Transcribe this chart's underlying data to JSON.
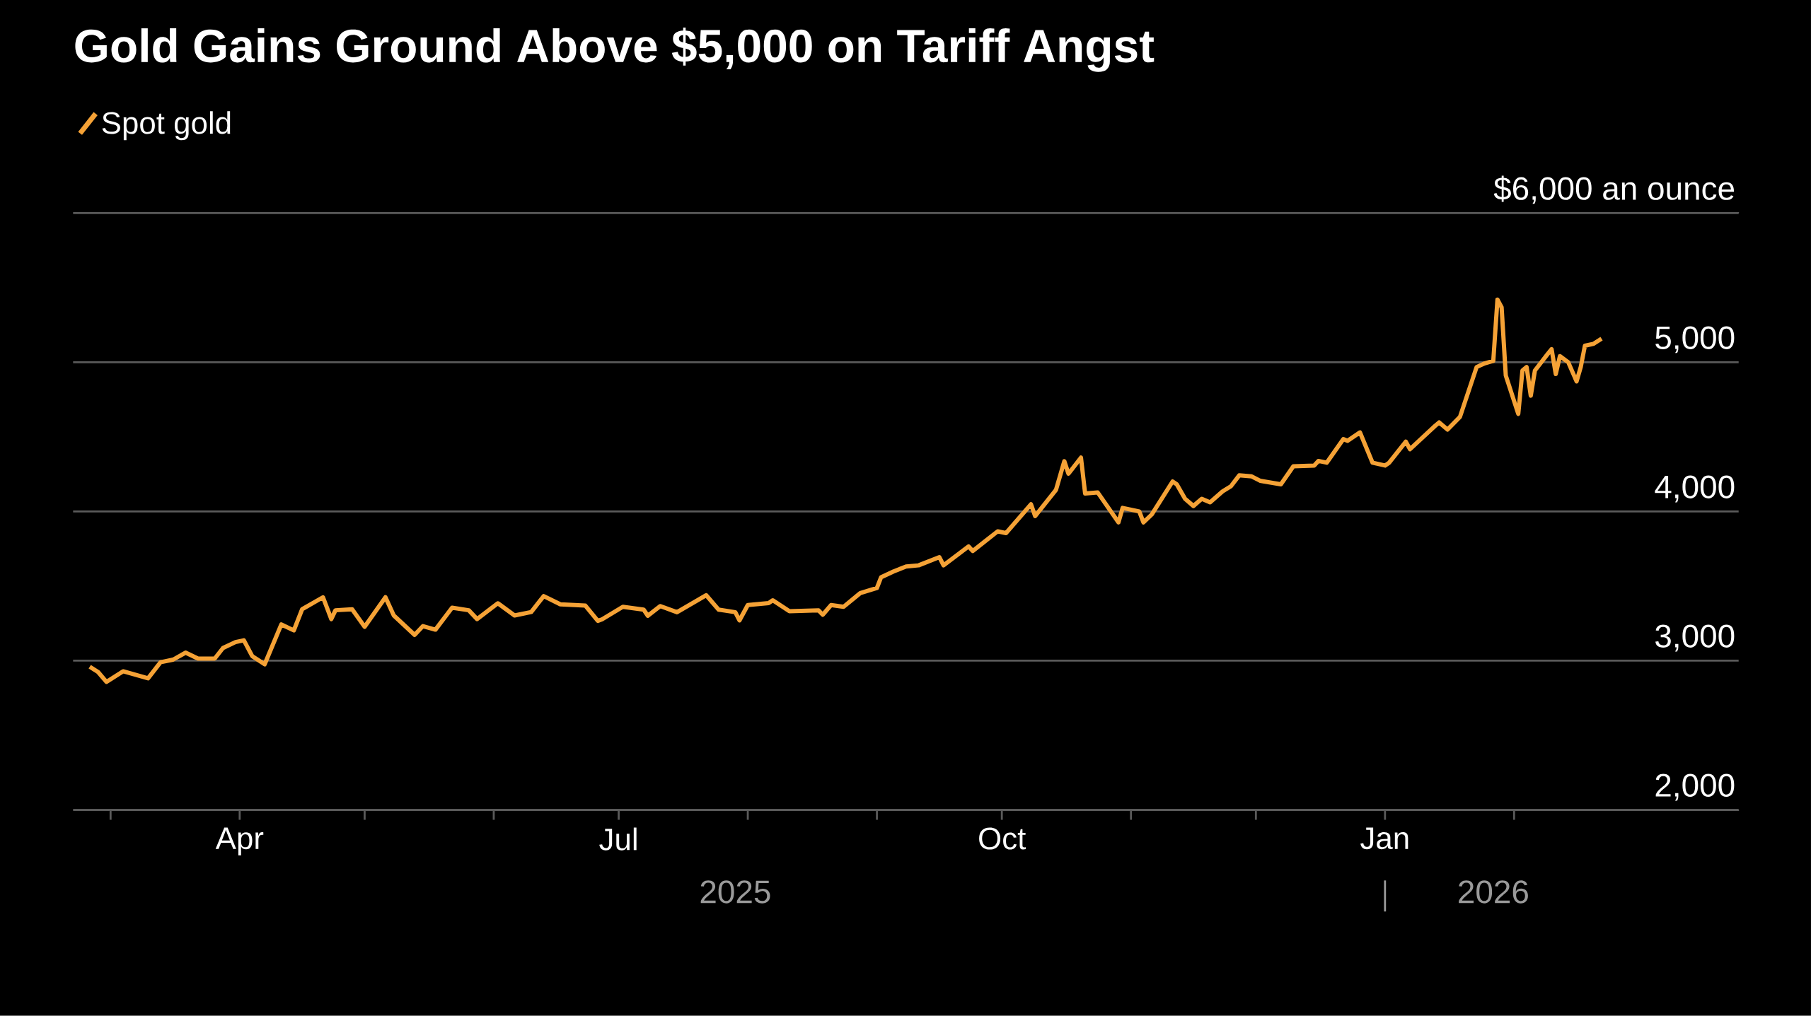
{
  "chart_data": {
    "type": "line",
    "title": "Gold Gains Ground Above $5,000 on Tariff Angst",
    "xlim": [
      "2025-02-20",
      "2026-03-27"
    ],
    "xticks": [
      {
        "value": "2025-03-01",
        "label": null
      },
      {
        "value": "2025-04-01",
        "label": "Apr"
      },
      {
        "value": "2025-05-01",
        "label": null
      },
      {
        "value": "2025-06-01",
        "label": null
      },
      {
        "value": "2025-07-01",
        "label": "Jul"
      },
      {
        "value": "2025-08-01",
        "label": null
      },
      {
        "value": "2025-09-01",
        "label": null
      },
      {
        "value": "2025-10-01",
        "label": "Oct"
      },
      {
        "value": "2025-11-01",
        "label": null
      },
      {
        "value": "2025-12-01",
        "label": null
      },
      {
        "value": "2026-01-01",
        "label": "Jan"
      },
      {
        "value": "2026-02-01",
        "label": null
      }
    ],
    "ylim": [
      2000,
      6000
    ],
    "yticks": [
      {
        "value": 2000,
        "label": "2,000"
      },
      {
        "value": 3000,
        "label": "3,000"
      },
      {
        "value": 4000,
        "label": "4,000"
      },
      {
        "value": 5000,
        "label": "5,000"
      },
      {
        "value": 6000,
        "label": "$6,000 an ounce"
      }
    ],
    "grid": "y",
    "legend": "top left",
    "marker": "none",
    "line_style": "solid",
    "annotations": [
      "2025",
      "2026"
    ],
    "x": [
      "2025-02-24",
      "2025-02-26",
      "2025-02-28",
      "2025-03-04",
      "2025-03-10",
      "2025-03-13",
      "2025-03-16",
      "2025-03-19",
      "2025-03-22",
      "2025-03-26",
      "2025-03-28",
      "2025-03-31",
      "2025-04-02",
      "2025-04-04",
      "2025-04-07",
      "2025-04-11",
      "2025-04-14",
      "2025-04-16",
      "2025-04-21",
      "2025-04-23",
      "2025-04-24",
      "2025-04-28",
      "2025-05-01",
      "2025-05-06",
      "2025-05-08",
      "2025-05-13",
      "2025-05-15",
      "2025-05-18",
      "2025-05-22",
      "2025-05-26",
      "2025-05-28",
      "2025-06-02",
      "2025-06-06",
      "2025-06-10",
      "2025-06-13",
      "2025-06-17",
      "2025-06-23",
      "2025-06-26",
      "2025-06-27",
      "2025-07-02",
      "2025-07-07",
      "2025-07-08",
      "2025-07-11",
      "2025-07-15",
      "2025-07-22",
      "2025-07-25",
      "2025-07-29",
      "2025-07-30",
      "2025-08-01",
      "2025-08-06",
      "2025-08-07",
      "2025-08-11",
      "2025-08-18",
      "2025-08-19",
      "2025-08-21",
      "2025-08-24",
      "2025-08-28",
      "2025-09-01",
      "2025-09-02",
      "2025-09-05",
      "2025-09-08",
      "2025-09-11",
      "2025-09-16",
      "2025-09-17",
      "2025-09-23",
      "2025-09-24",
      "2025-09-30",
      "2025-10-02",
      "2025-10-08",
      "2025-10-09",
      "2025-10-14",
      "2025-10-16",
      "2025-10-17",
      "2025-10-20",
      "2025-10-21",
      "2025-10-24",
      "2025-10-29",
      "2025-10-30",
      "2025-11-03",
      "2025-11-04",
      "2025-11-06",
      "2025-11-11",
      "2025-11-12",
      "2025-11-14",
      "2025-11-16",
      "2025-11-18",
      "2025-11-20",
      "2025-11-23",
      "2025-11-25",
      "2025-11-27",
      "2025-11-30",
      "2025-12-02",
      "2025-12-07",
      "2025-12-10",
      "2025-12-15",
      "2025-12-16",
      "2025-12-18",
      "2025-12-22",
      "2025-12-23",
      "2025-12-26",
      "2025-12-29",
      "2026-01-01",
      "2026-01-02",
      "2026-01-06",
      "2026-01-07",
      "2026-01-13",
      "2026-01-14",
      "2026-01-16",
      "2026-01-19",
      "2026-01-23",
      "2026-01-25",
      "2026-01-27",
      "2026-01-28",
      "2026-01-29",
      "2026-01-30",
      "2026-02-02",
      "2026-02-03",
      "2026-02-04",
      "2026-02-05",
      "2026-02-06",
      "2026-02-09",
      "2026-02-10",
      "2026-02-11",
      "2026-02-12",
      "2026-02-14",
      "2026-02-16",
      "2026-02-17",
      "2026-02-18",
      "2026-02-20",
      "2026-02-22"
    ],
    "series": [
      {
        "name": "Spot gold",
        "color": "#f5a236",
        "values": [
          2960,
          2924,
          2858,
          2929,
          2882,
          2990,
          3007,
          3054,
          3014,
          3014,
          3085,
          3125,
          3137,
          3031,
          2976,
          3243,
          3203,
          3345,
          3425,
          3279,
          3338,
          3345,
          3227,
          3425,
          3303,
          3173,
          3232,
          3208,
          3355,
          3338,
          3279,
          3385,
          3303,
          3326,
          3433,
          3378,
          3369,
          3267,
          3277,
          3361,
          3342,
          3301,
          3366,
          3325,
          3439,
          3342,
          3325,
          3270,
          3373,
          3386,
          3405,
          3332,
          3337,
          3308,
          3373,
          3361,
          3453,
          3487,
          3559,
          3598,
          3631,
          3639,
          3694,
          3639,
          3766,
          3735,
          3867,
          3855,
          4048,
          3969,
          4145,
          4337,
          4253,
          4361,
          4120,
          4128,
          3927,
          4024,
          4000,
          3927,
          3980,
          4201,
          4182,
          4085,
          4037,
          4085,
          4061,
          4135,
          4169,
          4242,
          4235,
          4206,
          4182,
          4303,
          4308,
          4339,
          4327,
          4485,
          4473,
          4530,
          4327,
          4308,
          4327,
          4468,
          4417,
          4573,
          4597,
          4549,
          4634,
          4968,
          4993,
          5009,
          5420,
          5368,
          4911,
          4654,
          4945,
          4968,
          4776,
          4945,
          5053,
          5088,
          4921,
          5041,
          5000,
          4872,
          4968,
          5111,
          5123,
          5158
        ]
      }
    ]
  }
}
